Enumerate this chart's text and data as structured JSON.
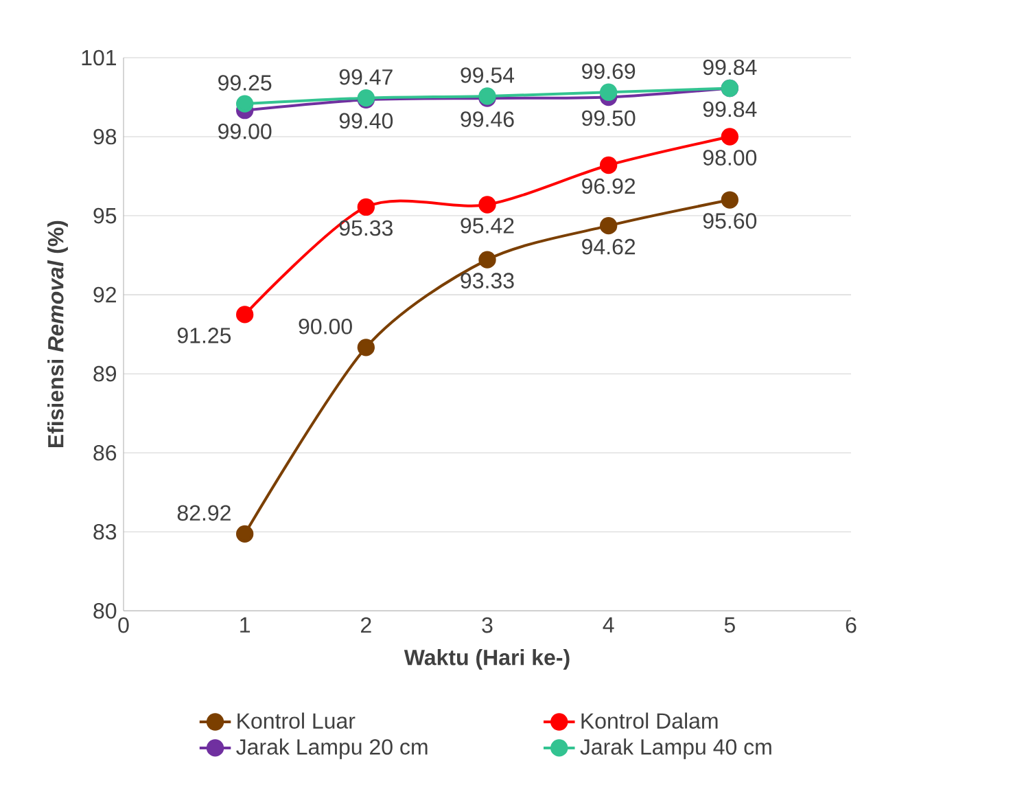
{
  "chart_data": {
    "type": "line",
    "xlabel": "Waktu (Hari ke-)",
    "ylabel": "Efisiensi *Removal* (%)",
    "x": [
      1,
      2,
      3,
      4,
      5
    ],
    "series": [
      {
        "name": "Kontrol Luar",
        "color": "#7b3f00",
        "values": [
          82.92,
          90.0,
          93.33,
          94.62,
          95.6
        ],
        "value_labels": [
          "82.92",
          "90.00",
          "93.33",
          "94.62",
          "95.60"
        ]
      },
      {
        "name": "Kontrol Dalam",
        "color": "#ff0000",
        "values": [
          91.25,
          95.33,
          95.42,
          96.92,
          98.0
        ],
        "value_labels": [
          "91.25",
          "95.33",
          "95.42",
          "96.92",
          "98.00"
        ]
      },
      {
        "name": "Jarak Lampu 20 cm",
        "color": "#7030a0",
        "values": [
          99.0,
          99.4,
          99.46,
          99.5,
          99.84
        ],
        "value_labels": [
          "99.00",
          "99.40",
          "99.46",
          "99.50",
          "99.84"
        ]
      },
      {
        "name": "Jarak Lampu 40 cm",
        "color": "#33c391",
        "values": [
          99.25,
          99.47,
          99.54,
          99.69,
          99.84
        ],
        "value_labels": [
          "99.25",
          "99.47",
          "99.54",
          "99.69",
          "99.84"
        ]
      }
    ],
    "xlim": [
      0,
      6
    ],
    "xticks": [
      0,
      1,
      2,
      3,
      4,
      5,
      6
    ],
    "ylim": [
      80,
      101
    ],
    "yticks": [
      80,
      83,
      86,
      89,
      92,
      95,
      98,
      101
    ],
    "grid": "y",
    "legend": "bottom",
    "marker": "circle",
    "line_style": "solid"
  }
}
